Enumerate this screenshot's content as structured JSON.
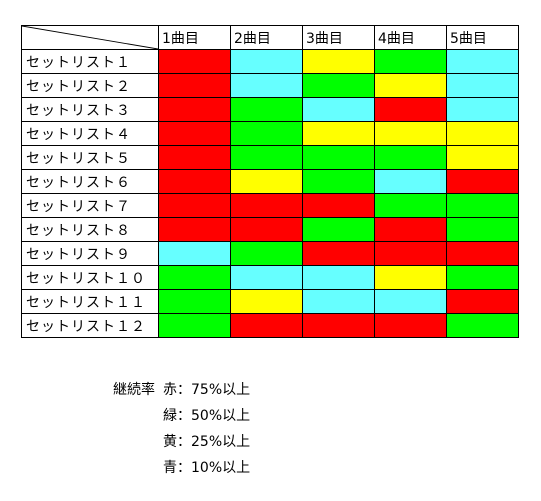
{
  "colors": {
    "red": "#ff0000",
    "green": "#00ff00",
    "yellow": "#ffff00",
    "cyan": "#66ffff"
  },
  "headers": [
    "1曲目",
    "2曲目",
    "3曲目",
    "4曲目",
    "5曲目"
  ],
  "rows": [
    {
      "label": "セットリスト１",
      "cells": [
        "red",
        "cyan",
        "yellow",
        "green",
        "cyan"
      ]
    },
    {
      "label": "セットリスト２",
      "cells": [
        "red",
        "cyan",
        "green",
        "yellow",
        "cyan"
      ]
    },
    {
      "label": "セットリスト３",
      "cells": [
        "red",
        "green",
        "cyan",
        "red",
        "cyan"
      ]
    },
    {
      "label": "セットリスト４",
      "cells": [
        "red",
        "green",
        "yellow",
        "yellow",
        "yellow"
      ]
    },
    {
      "label": "セットリスト５",
      "cells": [
        "red",
        "green",
        "green",
        "green",
        "yellow"
      ]
    },
    {
      "label": "セットリスト６",
      "cells": [
        "red",
        "yellow",
        "green",
        "cyan",
        "red"
      ]
    },
    {
      "label": "セットリスト７",
      "cells": [
        "red",
        "red",
        "red",
        "green",
        "green"
      ]
    },
    {
      "label": "セットリスト８",
      "cells": [
        "red",
        "red",
        "green",
        "red",
        "green"
      ]
    },
    {
      "label": "セットリスト９",
      "cells": [
        "cyan",
        "green",
        "red",
        "red",
        "red"
      ]
    },
    {
      "label": "セットリスト１０",
      "cells": [
        "green",
        "cyan",
        "cyan",
        "yellow",
        "green"
      ]
    },
    {
      "label": "セットリスト１１",
      "cells": [
        "green",
        "yellow",
        "cyan",
        "cyan",
        "red"
      ]
    },
    {
      "label": "セットリスト１２",
      "cells": [
        "green",
        "red",
        "red",
        "red",
        "green"
      ]
    }
  ],
  "legend": {
    "title": "継続率",
    "items": [
      "赤：75%以上",
      "緑：50%以上",
      "黄：25%以上",
      "青：10%以上"
    ]
  }
}
